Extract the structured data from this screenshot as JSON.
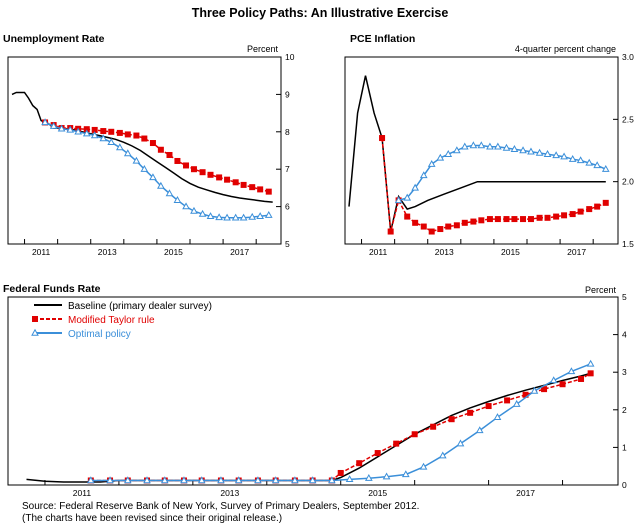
{
  "figure_title": "Three Policy Paths: An Illustrative Exercise",
  "source_note": "Source:  Federal Reserve Bank of New York, Survey of Primary Dealers, September 2012.",
  "revision_note": "(The charts have been revised since their original release.)",
  "colors": {
    "baseline": "#000000",
    "taylor": "#e00000",
    "optimal": "#3b8fd9"
  },
  "legend": [
    {
      "key": "baseline",
      "label": "Baseline (primary dealer survey)",
      "color": "#000000",
      "style": "solid",
      "marker": "none"
    },
    {
      "key": "taylor",
      "label": "Modified Taylor rule",
      "color": "#e00000",
      "style": "dashed",
      "marker": "square"
    },
    {
      "key": "optimal",
      "label": "Optimal policy",
      "color": "#3b8fd9",
      "style": "solid",
      "marker": "triangle"
    }
  ],
  "chart_data": [
    {
      "id": "unemployment",
      "type": "line",
      "title": "Unemployment Rate",
      "ylabel": "Percent",
      "ylim": [
        5,
        10
      ],
      "yticks": [
        "5",
        "6",
        "7",
        "8",
        "9",
        "10"
      ],
      "xlim": [
        2010.5,
        2018.75
      ],
      "xticks": [
        "2011",
        "2013",
        "2015",
        "2017"
      ],
      "series": [
        {
          "key": "baseline",
          "name": "Baseline (primary dealer survey)",
          "x": [
            2010.62,
            2010.75,
            2010.88,
            2011.0,
            2011.12,
            2011.25,
            2011.38,
            2011.5,
            2011.62,
            2011.75,
            2011.88,
            2012.0,
            2012.25,
            2012.5,
            2012.75,
            2013.0,
            2013.25,
            2013.5,
            2013.75,
            2014.0,
            2014.25,
            2014.5,
            2014.75,
            2015.0,
            2015.25,
            2015.5,
            2015.75,
            2016.0,
            2016.25,
            2016.5,
            2016.75,
            2017.0,
            2017.25,
            2017.5,
            2017.75,
            2018.0,
            2018.25,
            2018.5
          ],
          "y": [
            9.0,
            9.05,
            9.05,
            9.05,
            8.9,
            8.7,
            8.6,
            8.3,
            8.25,
            8.2,
            8.1,
            8.1,
            8.08,
            8.05,
            8.0,
            7.95,
            7.9,
            7.85,
            7.8,
            7.72,
            7.62,
            7.5,
            7.35,
            7.2,
            7.05,
            6.9,
            6.75,
            6.62,
            6.52,
            6.45,
            6.38,
            6.32,
            6.27,
            6.23,
            6.2,
            6.17,
            6.14,
            6.12
          ]
        },
        {
          "key": "taylor",
          "name": "Modified Taylor rule",
          "x": [
            2011.62,
            2011.88,
            2012.12,
            2012.38,
            2012.62,
            2012.88,
            2013.12,
            2013.38,
            2013.62,
            2013.88,
            2014.12,
            2014.38,
            2014.62,
            2014.88,
            2015.12,
            2015.38,
            2015.62,
            2015.88,
            2016.12,
            2016.38,
            2016.62,
            2016.88,
            2017.12,
            2017.38,
            2017.62,
            2017.88,
            2018.12,
            2018.38
          ],
          "y": [
            8.25,
            8.18,
            8.1,
            8.1,
            8.08,
            8.07,
            8.05,
            8.02,
            8.0,
            7.97,
            7.93,
            7.9,
            7.82,
            7.7,
            7.52,
            7.38,
            7.22,
            7.1,
            7.0,
            6.92,
            6.85,
            6.78,
            6.72,
            6.65,
            6.58,
            6.52,
            6.46,
            6.4
          ]
        },
        {
          "key": "optimal",
          "name": "Optimal policy",
          "x": [
            2011.62,
            2011.88,
            2012.12,
            2012.38,
            2012.62,
            2012.88,
            2013.12,
            2013.38,
            2013.62,
            2013.88,
            2014.12,
            2014.38,
            2014.62,
            2014.88,
            2015.12,
            2015.38,
            2015.62,
            2015.88,
            2016.12,
            2016.38,
            2016.62,
            2016.88,
            2017.12,
            2017.38,
            2017.62,
            2017.88,
            2018.12,
            2018.38
          ],
          "y": [
            8.25,
            8.15,
            8.08,
            8.05,
            8.0,
            7.95,
            7.9,
            7.82,
            7.72,
            7.58,
            7.42,
            7.22,
            7.0,
            6.78,
            6.55,
            6.35,
            6.17,
            6.0,
            5.88,
            5.8,
            5.74,
            5.71,
            5.7,
            5.7,
            5.7,
            5.72,
            5.74,
            5.77
          ]
        }
      ]
    },
    {
      "id": "pce",
      "type": "line",
      "title": "PCE Inflation",
      "ylabel": "4-quarter percent change",
      "ylim": [
        1.5,
        3.0
      ],
      "yticks": [
        "1.5",
        "2.0",
        "2.5",
        "3.0"
      ],
      "xlim": [
        2010.5,
        2018.75
      ],
      "xticks": [
        "2011",
        "2013",
        "2015",
        "2017"
      ],
      "series": [
        {
          "key": "baseline",
          "name": "Baseline (primary dealer survey)",
          "x": [
            2010.62,
            2010.88,
            2011.12,
            2011.38,
            2011.62,
            2011.88,
            2012.12,
            2012.38,
            2012.62,
            2013.0,
            2013.5,
            2014.0,
            2014.5,
            2015.0,
            2015.5,
            2016.0,
            2016.5,
            2017.0,
            2017.5,
            2018.0,
            2018.38
          ],
          "y": [
            1.8,
            2.55,
            2.85,
            2.55,
            2.35,
            1.6,
            1.88,
            1.78,
            1.8,
            1.85,
            1.9,
            1.95,
            2.0,
            2.0,
            2.0,
            2.0,
            2.0,
            2.0,
            2.0,
            2.0,
            2.0
          ]
        },
        {
          "key": "taylor",
          "name": "Modified Taylor rule",
          "x": [
            2011.62,
            2011.88,
            2012.12,
            2012.38,
            2012.62,
            2012.88,
            2013.12,
            2013.38,
            2013.62,
            2013.88,
            2014.12,
            2014.38,
            2014.62,
            2014.88,
            2015.12,
            2015.38,
            2015.62,
            2015.88,
            2016.12,
            2016.38,
            2016.62,
            2016.88,
            2017.12,
            2017.38,
            2017.62,
            2017.88,
            2018.12,
            2018.38
          ],
          "y": [
            2.35,
            1.6,
            1.85,
            1.72,
            1.67,
            1.64,
            1.6,
            1.62,
            1.64,
            1.65,
            1.67,
            1.68,
            1.69,
            1.7,
            1.7,
            1.7,
            1.7,
            1.7,
            1.7,
            1.71,
            1.71,
            1.72,
            1.73,
            1.74,
            1.76,
            1.78,
            1.8,
            1.83
          ]
        },
        {
          "key": "optimal",
          "name": "Optimal policy",
          "x": [
            2012.12,
            2012.38,
            2012.62,
            2012.88,
            2013.12,
            2013.38,
            2013.62,
            2013.88,
            2014.12,
            2014.38,
            2014.62,
            2014.88,
            2015.12,
            2015.38,
            2015.62,
            2015.88,
            2016.12,
            2016.38,
            2016.62,
            2016.88,
            2017.12,
            2017.38,
            2017.62,
            2017.88,
            2018.12,
            2018.38
          ],
          "y": [
            1.85,
            1.87,
            1.95,
            2.05,
            2.14,
            2.19,
            2.22,
            2.25,
            2.28,
            2.29,
            2.29,
            2.28,
            2.28,
            2.27,
            2.26,
            2.25,
            2.24,
            2.23,
            2.22,
            2.21,
            2.2,
            2.18,
            2.17,
            2.15,
            2.13,
            2.1
          ]
        }
      ]
    },
    {
      "id": "fedfunds",
      "type": "line",
      "title": "Federal Funds Rate",
      "ylabel": "Percent",
      "ylim": [
        0,
        5
      ],
      "yticks": [
        "0",
        "1",
        "2",
        "3",
        "4",
        "5"
      ],
      "xlim": [
        2010.5,
        2018.75
      ],
      "xticks": [
        "2011",
        "2013",
        "2015",
        "2017"
      ],
      "series": [
        {
          "key": "baseline",
          "name": "Baseline (primary dealer survey)",
          "x": [
            2010.75,
            2011.0,
            2011.25,
            2011.5,
            2011.75,
            2012.0,
            2012.5,
            2013.0,
            2013.5,
            2014.0,
            2014.5,
            2014.88,
            2015.0,
            2015.25,
            2015.5,
            2015.75,
            2016.0,
            2016.25,
            2016.5,
            2016.75,
            2017.0,
            2017.25,
            2017.5,
            2017.75,
            2018.0,
            2018.25,
            2018.38
          ],
          "y": [
            0.15,
            0.1,
            0.08,
            0.08,
            0.08,
            0.12,
            0.12,
            0.12,
            0.12,
            0.12,
            0.12,
            0.12,
            0.2,
            0.45,
            0.75,
            1.05,
            1.35,
            1.6,
            1.85,
            2.05,
            2.22,
            2.38,
            2.52,
            2.65,
            2.78,
            2.9,
            2.97
          ]
        },
        {
          "key": "taylor",
          "name": "Modified Taylor rule",
          "x": [
            2011.62,
            2011.88,
            2012.12,
            2012.38,
            2012.62,
            2012.88,
            2013.12,
            2013.38,
            2013.62,
            2013.88,
            2014.12,
            2014.38,
            2014.62,
            2014.88,
            2015.0,
            2015.25,
            2015.5,
            2015.75,
            2016.0,
            2016.25,
            2016.5,
            2016.75,
            2017.0,
            2017.25,
            2017.5,
            2017.75,
            2018.0,
            2018.25,
            2018.38
          ],
          "y": [
            0.12,
            0.12,
            0.12,
            0.12,
            0.12,
            0.12,
            0.12,
            0.12,
            0.12,
            0.12,
            0.12,
            0.12,
            0.12,
            0.12,
            0.32,
            0.58,
            0.85,
            1.1,
            1.35,
            1.55,
            1.75,
            1.92,
            2.1,
            2.25,
            2.4,
            2.55,
            2.68,
            2.82,
            2.97
          ]
        },
        {
          "key": "optimal",
          "name": "Optimal policy",
          "x": [
            2011.62,
            2011.88,
            2012.12,
            2012.38,
            2012.62,
            2012.88,
            2013.12,
            2013.38,
            2013.62,
            2013.88,
            2014.12,
            2014.38,
            2014.62,
            2014.88,
            2015.12,
            2015.38,
            2015.62,
            2015.88,
            2016.12,
            2016.38,
            2016.62,
            2016.88,
            2017.12,
            2017.38,
            2017.62,
            2017.88,
            2018.12,
            2018.38
          ],
          "y": [
            0.12,
            0.12,
            0.12,
            0.12,
            0.12,
            0.12,
            0.12,
            0.12,
            0.12,
            0.12,
            0.12,
            0.12,
            0.12,
            0.12,
            0.15,
            0.18,
            0.22,
            0.28,
            0.48,
            0.78,
            1.1,
            1.45,
            1.8,
            2.15,
            2.5,
            2.78,
            3.02,
            3.22
          ]
        }
      ]
    }
  ]
}
